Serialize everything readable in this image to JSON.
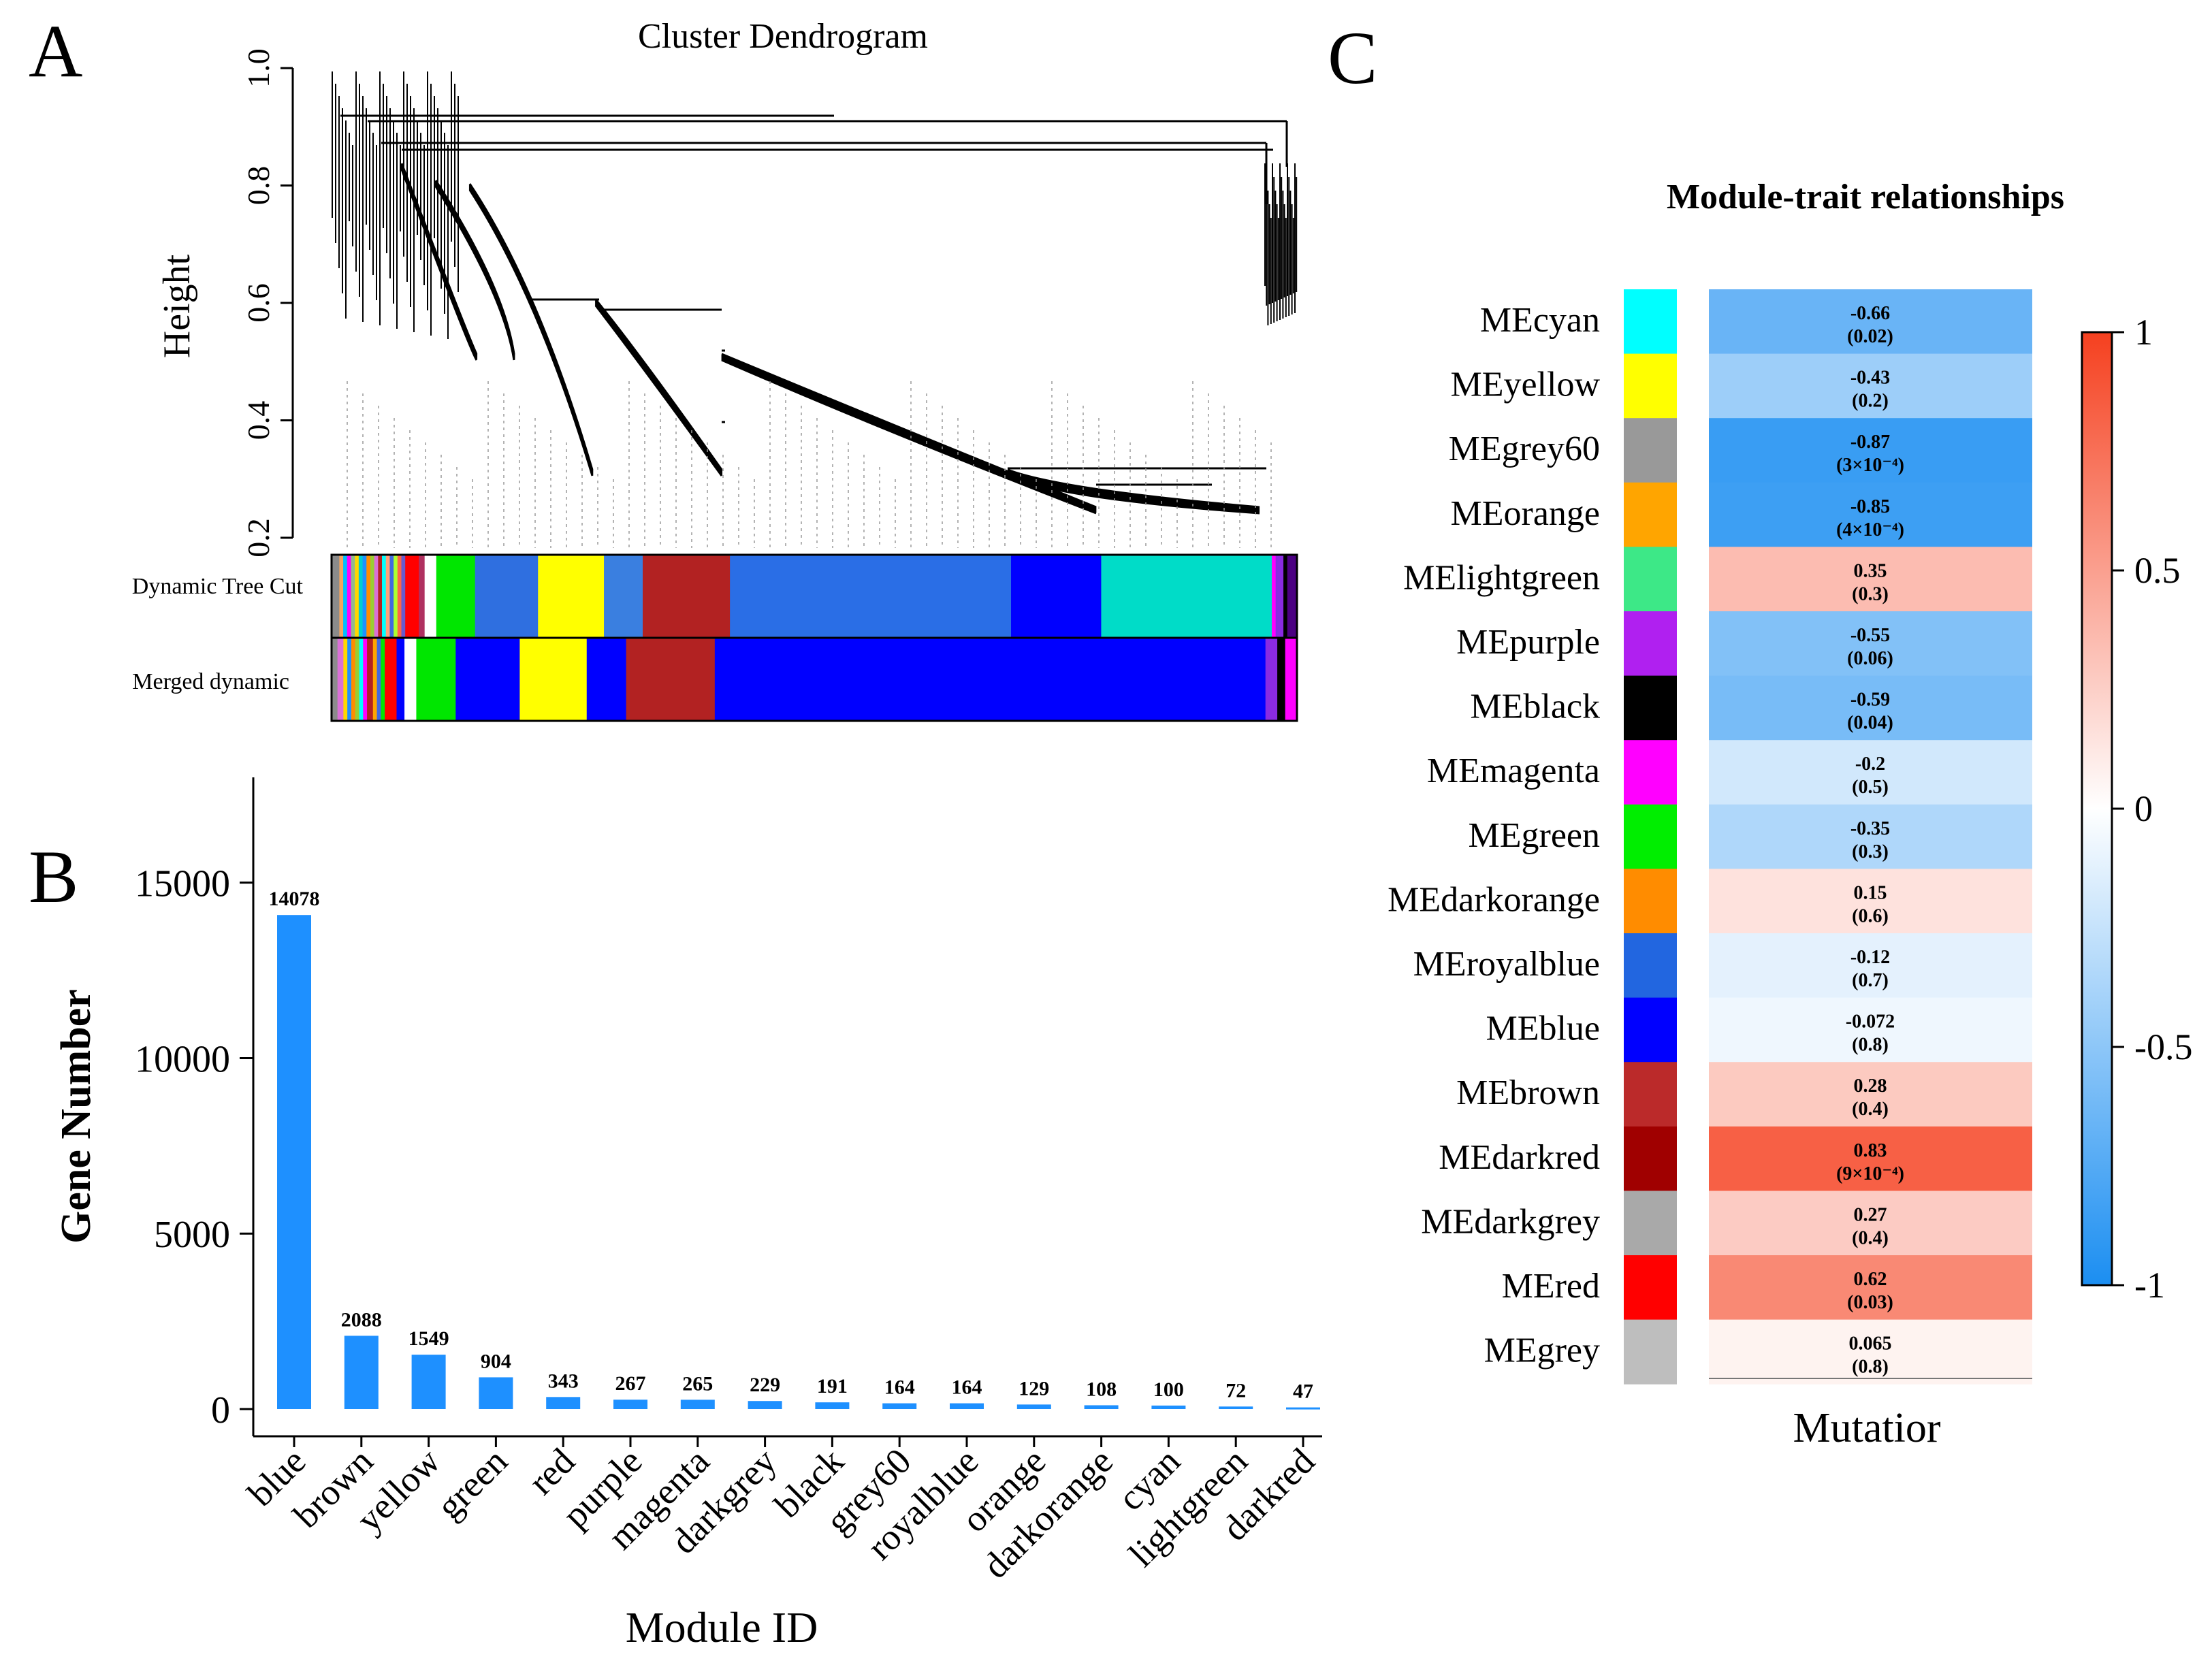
{
  "figure": {
    "panel_a_letter": "A",
    "panel_b_letter": "B",
    "panel_c_letter": "C"
  },
  "colors": {
    "bar": "#1e90ff",
    "axis": "#000000",
    "heat_neg": "#1b8ef1",
    "heat_zero": "#ffffff",
    "heat_pos": "#f5401f"
  },
  "chart_data": [
    {
      "id": "dendrogram",
      "type": "dendrogram",
      "title": "Cluster Dendrogram",
      "ylabel": "Height",
      "ylim": [
        0.2,
        1.0
      ],
      "yticks": [
        "0.2",
        "0.4",
        "0.6",
        "0.8",
        "1.0"
      ],
      "color_bar_labels": [
        "Dynamic  Tree Cut",
        "Merged dynamic"
      ],
      "dynamic_tree_cut": [
        {
          "color": "#8b8b8b",
          "share": 0.008
        },
        {
          "color": "#f4a460",
          "share": 0.004
        },
        {
          "color": "#00bfff",
          "share": 0.004
        },
        {
          "color": "#ff00ff",
          "share": 0.004
        },
        {
          "color": "#8fbc8f",
          "share": 0.004
        },
        {
          "color": "#ffd700",
          "share": 0.004
        },
        {
          "color": "#00ced1",
          "share": 0.004
        },
        {
          "color": "#1e90ff",
          "share": 0.004
        },
        {
          "color": "#ff8c00",
          "share": 0.004
        },
        {
          "color": "#9acd32",
          "share": 0.004
        },
        {
          "color": "#da70d6",
          "share": 0.004
        },
        {
          "color": "#b22222",
          "share": 0.004
        },
        {
          "color": "#00ffff",
          "share": 0.004
        },
        {
          "color": "#ffa07a",
          "share": 0.004
        },
        {
          "color": "#4169e1",
          "share": 0.004
        },
        {
          "color": "#adff2f",
          "share": 0.004
        },
        {
          "color": "#ff6347",
          "share": 0.004
        },
        {
          "color": "#6a5acd",
          "share": 0.004
        },
        {
          "color": "#ff0000",
          "share": 0.014
        },
        {
          "color": "#b03060",
          "share": 0.006
        },
        {
          "color": "#ffffff",
          "share": 0.012
        },
        {
          "color": "#00e600",
          "share": 0.04
        },
        {
          "color": "#2f6fe0",
          "share": 0.065
        },
        {
          "color": "#ffff00",
          "share": 0.068
        },
        {
          "color": "#3a7fe0",
          "share": 0.04
        },
        {
          "color": "#b22222",
          "share": 0.09
        },
        {
          "color": "#2a6ee6",
          "share": 0.29
        },
        {
          "color": "#0000ff",
          "share": 0.093
        },
        {
          "color": "#00dcc8",
          "share": 0.176
        },
        {
          "color": "#ff00ff",
          "share": 0.004
        },
        {
          "color": "#8a2be2",
          "share": 0.008
        },
        {
          "color": "#000000",
          "share": 0.004
        },
        {
          "color": "#4b0082",
          "share": 0.01
        }
      ],
      "merged_dynamic": [
        {
          "color": "#8b8b8b",
          "share": 0.006
        },
        {
          "color": "#da70d6",
          "share": 0.006
        },
        {
          "color": "#ffd700",
          "share": 0.004
        },
        {
          "color": "#1e90ff",
          "share": 0.004
        },
        {
          "color": "#ff8c00",
          "share": 0.004
        },
        {
          "color": "#9acd32",
          "share": 0.004
        },
        {
          "color": "#00ffff",
          "share": 0.004
        },
        {
          "color": "#ff00ff",
          "share": 0.004
        },
        {
          "color": "#b22222",
          "share": 0.006
        },
        {
          "color": "#ffa500",
          "share": 0.004
        },
        {
          "color": "#4169e1",
          "share": 0.004
        },
        {
          "color": "#00e600",
          "share": 0.004
        },
        {
          "color": "#ff0000",
          "share": 0.012
        },
        {
          "color": "#0000ff",
          "share": 0.008
        },
        {
          "color": "#ffffff",
          "share": 0.012
        },
        {
          "color": "#00e600",
          "share": 0.04
        },
        {
          "color": "#0000ff",
          "share": 0.065
        },
        {
          "color": "#ffff00",
          "share": 0.068
        },
        {
          "color": "#0000ff",
          "share": 0.04
        },
        {
          "color": "#b22222",
          "share": 0.09
        },
        {
          "color": "#0000ff",
          "share": 0.559
        },
        {
          "color": "#8a2be2",
          "share": 0.012
        },
        {
          "color": "#000000",
          "share": 0.008
        },
        {
          "color": "#ff00ff",
          "share": 0.012
        }
      ]
    },
    {
      "id": "gene-count",
      "type": "bar",
      "xlabel": "Module ID",
      "ylabel": "Gene Number",
      "ylim": [
        0,
        18000
      ],
      "yticks": [
        0,
        5000,
        10000,
        15000
      ],
      "categories": [
        "blue",
        "brown",
        "yellow",
        "green",
        "red",
        "purple",
        "magenta",
        "darkgrey",
        "black",
        "grey60",
        "royalblue",
        "orange",
        "darkorange",
        "cyan",
        "lightgreen",
        "darkred"
      ],
      "values": [
        14078,
        2088,
        1549,
        904,
        343,
        267,
        265,
        229,
        191,
        164,
        164,
        129,
        108,
        100,
        72,
        47
      ],
      "value_labels": [
        "14078",
        "2088",
        "1549",
        "904",
        "343",
        "267",
        "265",
        "229",
        "191",
        "164",
        "164",
        "129",
        "108",
        "100",
        "72",
        "47"
      ]
    },
    {
      "id": "module-trait",
      "type": "heatmap",
      "title": "Module-trait relationships",
      "xlabel": "Mutatior",
      "scale_range": [
        -1,
        1
      ],
      "scale_ticks": [
        "1",
        "0.5",
        "0",
        "-0.5",
        "-1"
      ],
      "rows": [
        {
          "module": "MEcyan",
          "swatch": "#00ffff",
          "corr": -0.66,
          "corr_label": "-0.66",
          "p_label": "(0.02)"
        },
        {
          "module": "MEyellow",
          "swatch": "#ffff00",
          "corr": -0.43,
          "corr_label": "-0.43",
          "p_label": "(0.2)"
        },
        {
          "module": "MEgrey60",
          "swatch": "#999999",
          "corr": -0.87,
          "corr_label": "-0.87",
          "p_label": "(3×10⁻⁴)"
        },
        {
          "module": "MEorange",
          "swatch": "#ffa500",
          "corr": -0.85,
          "corr_label": "-0.85",
          "p_label": "(4×10⁻⁴)"
        },
        {
          "module": "MElightgreen",
          "swatch": "#3de887",
          "corr": 0.35,
          "corr_label": "0.35",
          "p_label": "(0.3)"
        },
        {
          "module": "MEpurple",
          "swatch": "#b020f0",
          "corr": -0.55,
          "corr_label": "-0.55",
          "p_label": "(0.06)"
        },
        {
          "module": "MEblack",
          "swatch": "#000000",
          "corr": -0.59,
          "corr_label": "-0.59",
          "p_label": "(0.04)"
        },
        {
          "module": "MEmagenta",
          "swatch": "#ff00ff",
          "corr": -0.2,
          "corr_label": "-0.2",
          "p_label": "(0.5)"
        },
        {
          "module": "MEgreen",
          "swatch": "#00ee00",
          "corr": -0.35,
          "corr_label": "-0.35",
          "p_label": "(0.3)"
        },
        {
          "module": "MEdarkorange",
          "swatch": "#ff8c00",
          "corr": 0.15,
          "corr_label": "0.15",
          "p_label": "(0.6)"
        },
        {
          "module": "MEroyalblue",
          "swatch": "#2266e0",
          "corr": -0.12,
          "corr_label": "-0.12",
          "p_label": "(0.7)"
        },
        {
          "module": "MEblue",
          "swatch": "#0000ff",
          "corr": -0.072,
          "corr_label": "-0.072",
          "p_label": "(0.8)"
        },
        {
          "module": "MEbrown",
          "swatch": "#bb2a2a",
          "corr": 0.28,
          "corr_label": "0.28",
          "p_label": "(0.4)"
        },
        {
          "module": "MEdarkred",
          "swatch": "#a00000",
          "corr": 0.83,
          "corr_label": "0.83",
          "p_label": "(9×10⁻⁴)"
        },
        {
          "module": "MEdarkgrey",
          "swatch": "#a9a9a9",
          "corr": 0.27,
          "corr_label": "0.27",
          "p_label": "(0.4)"
        },
        {
          "module": "MEred",
          "swatch": "#ff0000",
          "corr": 0.62,
          "corr_label": "0.62",
          "p_label": "(0.03)"
        },
        {
          "module": "MEgrey",
          "swatch": "#bebebe",
          "corr": 0.065,
          "corr_label": "0.065",
          "p_label": "(0.8)"
        }
      ]
    }
  ]
}
